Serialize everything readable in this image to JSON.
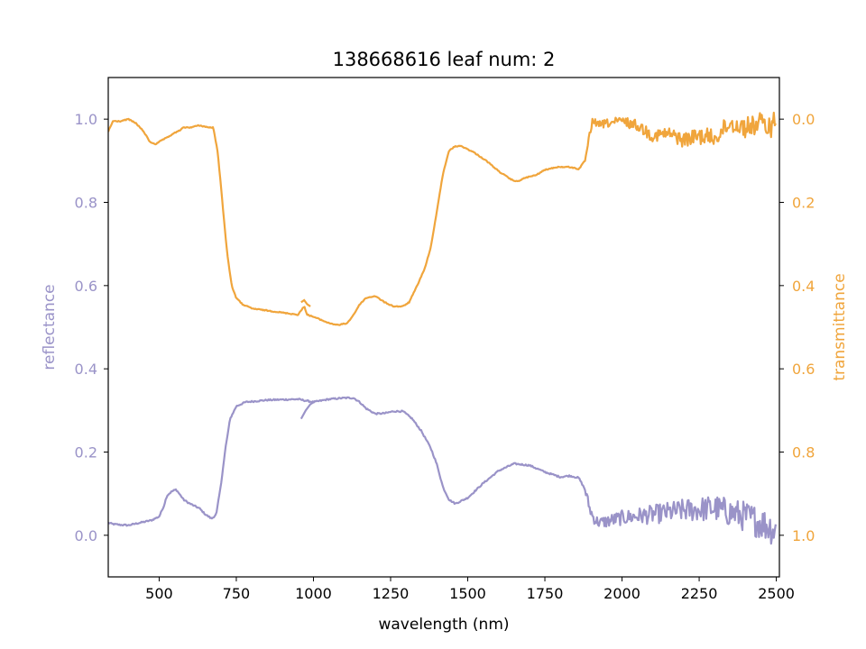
{
  "chart_data": {
    "type": "line",
    "title": "138668616 leaf num: 2",
    "xlabel": "wavelength (nm)",
    "ylabel_left": "reflectance",
    "ylabel_right": "transmittance",
    "xlim": [
      335,
      2510
    ],
    "ylim_left": [
      -0.1,
      1.1
    ],
    "ylim_right": [
      1.1,
      -0.1
    ],
    "right_axis_inverted": true,
    "grid": false,
    "x_ticks": [
      500,
      750,
      1000,
      1250,
      1500,
      1750,
      2000,
      2250,
      2500
    ],
    "y_ticks_left": [
      0.0,
      0.2,
      0.4,
      0.6,
      0.8,
      1.0
    ],
    "y_ticks_right": [
      0.0,
      0.2,
      0.4,
      0.6,
      0.8,
      1.0
    ],
    "series": [
      {
        "name": "reflectance",
        "axis": "left",
        "color": "#9a93c8",
        "x": [
          335,
          350,
          375,
          400,
          425,
          450,
          475,
          500,
          515,
          525,
          540,
          555,
          565,
          580,
          595,
          610,
          630,
          650,
          670,
          685,
          700,
          715,
          730,
          750,
          780,
          850,
          950,
          1000,
          1050,
          1100,
          1130,
          1150,
          1170,
          1200,
          1230,
          1260,
          1290,
          1320,
          1350,
          1380,
          1400,
          1420,
          1440,
          1460,
          1500,
          1550,
          1600,
          1650,
          1700,
          1750,
          1800,
          1830,
          1860,
          1880,
          1895,
          1905,
          1915,
          1930,
          2000,
          2100,
          2200,
          2300,
          2350,
          2400,
          2450,
          2480,
          2500
        ],
        "y": [
          0.03,
          0.027,
          0.025,
          0.024,
          0.028,
          0.032,
          0.036,
          0.045,
          0.07,
          0.095,
          0.105,
          0.11,
          0.1,
          0.085,
          0.078,
          0.072,
          0.065,
          0.05,
          0.04,
          0.05,
          0.12,
          0.21,
          0.28,
          0.31,
          0.32,
          0.325,
          0.327,
          0.32,
          0.327,
          0.33,
          0.33,
          0.32,
          0.305,
          0.292,
          0.293,
          0.298,
          0.298,
          0.28,
          0.25,
          0.21,
          0.17,
          0.115,
          0.085,
          0.076,
          0.09,
          0.125,
          0.155,
          0.172,
          0.168,
          0.152,
          0.14,
          0.143,
          0.138,
          0.11,
          0.065,
          0.045,
          0.035,
          0.03,
          0.042,
          0.05,
          0.06,
          0.065,
          0.055,
          0.045,
          0.03,
          0.02,
          0.01
        ],
        "noise_from_x": 1880,
        "noise_amplitude": 0.012,
        "branch": {
          "x": [
            960,
            975,
            990,
            1005
          ],
          "y": [
            0.28,
            0.3,
            0.315,
            0.322
          ]
        }
      },
      {
        "name": "transmittance",
        "axis": "right",
        "color": "#f0a53c",
        "x": [
          335,
          350,
          375,
          400,
          425,
          450,
          470,
          490,
          510,
          525,
          545,
          560,
          580,
          600,
          630,
          660,
          675,
          690,
          700,
          710,
          720,
          735,
          750,
          770,
          800,
          850,
          900,
          950,
          970,
          980,
          1000,
          1050,
          1080,
          1110,
          1130,
          1150,
          1170,
          1200,
          1230,
          1260,
          1290,
          1310,
          1330,
          1360,
          1380,
          1400,
          1420,
          1440,
          1460,
          1480,
          1520,
          1560,
          1600,
          1640,
          1660,
          1690,
          1720,
          1750,
          1790,
          1830,
          1860,
          1880,
          1895,
          1905,
          1920,
          1950,
          2000,
          2050,
          2100,
          2150,
          2200,
          2250,
          2300,
          2350,
          2400,
          2450,
          2480,
          2500
        ],
        "y": [
          0.03,
          0.005,
          0.005,
          0.0,
          0.01,
          0.03,
          0.055,
          0.06,
          0.05,
          0.045,
          0.035,
          0.03,
          0.02,
          0.02,
          0.015,
          0.02,
          0.02,
          0.08,
          0.16,
          0.24,
          0.32,
          0.4,
          0.43,
          0.445,
          0.455,
          0.46,
          0.465,
          0.47,
          0.45,
          0.47,
          0.475,
          0.49,
          0.495,
          0.49,
          0.47,
          0.445,
          0.43,
          0.425,
          0.44,
          0.45,
          0.45,
          0.44,
          0.41,
          0.36,
          0.31,
          0.22,
          0.13,
          0.075,
          0.065,
          0.065,
          0.08,
          0.1,
          0.125,
          0.145,
          0.15,
          0.14,
          0.135,
          0.122,
          0.115,
          0.115,
          0.12,
          0.1,
          0.04,
          0.0,
          0.015,
          0.01,
          0.005,
          0.015,
          0.04,
          0.035,
          0.05,
          0.04,
          0.045,
          0.01,
          0.02,
          0.01,
          0.02,
          0.0
        ],
        "noise_from_x": 1890,
        "noise_amplitude": 0.008,
        "branch": {
          "x": [
            960,
            970,
            980,
            990
          ],
          "y": [
            0.44,
            0.435,
            0.445,
            0.45
          ]
        }
      }
    ]
  }
}
